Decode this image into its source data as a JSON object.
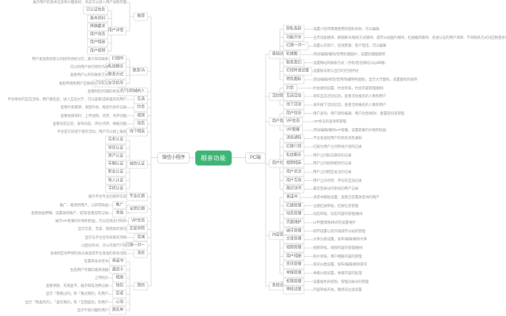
{
  "colors": {
    "accent_green": "#3eb575",
    "wire": "#dcdcdc",
    "topic_text": "#767676",
    "note_text": "#9c9c9c"
  },
  "center": {
    "label": "相亲功能"
  },
  "left": {
    "label": "微信小程序",
    "children": [
      {
        "label": "推荐",
        "desc": "展示用户的基本信息和兴趣爱好，点击可以进入用户详情页面",
        "children": [
          {
            "label": "用户详情",
            "children": [
              {
                "label": "已认证信息"
              },
              {
                "label": "基本资料"
              },
              {
                "label": "择偶要求"
              },
              {
                "label": "用户动态"
              },
              {
                "label": "用户相册"
              },
              {
                "label": "用户视频"
              }
            ]
          }
        ]
      },
      {
        "label": "联系TA",
        "children": [
          {
            "label": "打招呼",
            "desc": "用户发送系统默认的招呼语给对方，属于单向联系"
          },
          {
            "label": "私信聊天",
            "desc": "可以和用户进行即时沟通"
          },
          {
            "label": "联系方式",
            "desc": "查看用户公开的联系方式"
          },
          {
            "label": "互换微信/手机号",
            "desc": "发起申请和用户互换微信/手机号"
          }
        ]
      },
      {
        "label": "附近/同城的人",
        "desc": "查看附近/同城的单身用户"
      },
      {
        "label": "互选",
        "desc": "平台举办的互选活动，用户报名后，进入互选大厅，可以查看/选择喜欢的用户"
      },
      {
        "label": "约会",
        "desc": "查看约会邀请、发起约会、报名约会的记录"
      },
      {
        "label": "视频",
        "desc": "查看视频资料、上传视频、点赞、点评功能"
      },
      {
        "label": "动态",
        "desc": "查看动态信息、发布动态、评论/点赞、举报功能"
      },
      {
        "label": "线下相亲",
        "desc": "平台官方的线下相亲活动，用户可以线上报名"
      },
      {
        "label": "诚信认证",
        "children": [
          {
            "label": "实名认证"
          },
          {
            "label": "学历认证"
          },
          {
            "label": "房产认证"
          },
          {
            "label": "车辆认证"
          },
          {
            "label": "职业认证"
          },
          {
            "label": "收入认证"
          },
          {
            "label": "手机认证"
          }
        ]
      },
      {
        "label": "专业红娘",
        "desc": "展示平台专业红娘的信息"
      },
      {
        "label": "全民红娘",
        "children": [
          {
            "label": "推广",
            "desc": "推广、邀请新用户，以获得收益"
          },
          {
            "label": "收益",
            "desc": "查看收益明细、设置收款账户、提现/查看提现记录"
          }
        ]
      },
      {
        "label": "VIP会员",
        "desc": "展示VIP套餐的价格和权益，可以在线支付购买"
      },
      {
        "label": "恋爱学院",
        "desc": "显示交友、恋爱、情感类的资讯"
      },
      {
        "label": "商城",
        "desc": "显示与平台合作商家的项目"
      },
      {
        "label": "红娘一对一",
        "desc": "以图文形式，对公司进行介绍"
      },
      {
        "label": "消息",
        "desc": "会收到互动申请的会员发送或平台发送的系统消息"
      },
      {
        "label": "我的",
        "children": [
          {
            "label": "承诺书",
            "desc": "签署单身承诺书"
          },
          {
            "label": "邀请卡",
            "desc": "生成用户专属的邀请海报"
          },
          {
            "label": "相册",
            "desc": "上传照片"
          },
          {
            "label": "钱包",
            "desc": "查看余额、充值金币，展示每笔消费记录"
          },
          {
            "label": "足迹",
            "desc": "显示「我看过的」和「看过我的」的用户"
          },
          {
            "label": "心动",
            "desc": "显示「我喜欢的」、「喜欢我的」和「互相喜欢」的用户"
          },
          {
            "label": "黑名单",
            "desc": "显示不感兴趣的用户"
          }
        ]
      }
    ]
  },
  "right": {
    "label": "PC端",
    "children": [
      {
        "label": "基础设置",
        "children": [
          {
            "label": "隐私条款",
            "desc": "设置小程序需要使用的隐私条款，可以编辑"
          },
          {
            "label": "功能开关",
            "desc": "主页功能模块、解锁聊天/联系方式模块、城市分站图片模块、红娘推荐模块、各类认证的用户清单、不同联系方式对应数量条件的设置"
          },
          {
            "label": "红娘一对一",
            "desc": "设置公司简介、在线客服、客户电话，可以编辑"
          },
          {
            "label": "轮播图",
            "desc": "添加/编辑/删除/禁用轮播图片，设置轮播图跳转"
          },
          {
            "label": "联系我们",
            "desc": "设置网站的联系方式（手机/电话/微信/QQ/邮箱）"
          },
          {
            "label": "打招呼语设置",
            "desc": "设置账号默认显示的打招呼语"
          },
          {
            "label": "特色图标",
            "desc": "添加/编辑/修改/禁用/隐藏特色图标，显示大厅图标，设置图标的排序"
          }
        ]
      },
      {
        "label": "活动管理",
        "children": [
          {
            "label": "约会",
            "desc": "约会类别设置、约会审核，约会内容管理/删除"
          },
          {
            "label": "互选活动",
            "desc": "发布互选活动信息，查看活动报名的人数和用户"
          },
          {
            "label": "线下活动",
            "desc": "发布线下活动信息，查看活动报名的人数和用户"
          }
        ]
      },
      {
        "label": "用户管理",
        "children": [
          {
            "label": "用户信息",
            "desc": "用户查询、用户资料编辑、用户封禁/解封、重置密码等管理"
          },
          {
            "label": "VIP会员",
            "desc": "VIP会员的查询和管理"
          },
          {
            "label": "VIP套餐",
            "desc": "添加/编辑/删除VIP套餐，设置套餐的价格和权益"
          }
        ]
      },
      {
        "label": "用户社交",
        "children": [
          {
            "label": "消息通知",
            "desc": "平台发送给用户的系统消息通知"
          },
          {
            "label": "红娘介绍",
            "desc": "红娘为用户之间牵线介绍的记录"
          },
          {
            "label": "私信聊天",
            "desc": "用户之间私信聊天的记录"
          },
          {
            "label": "视频相亲",
            "desc": "用户之间视频相亲的记录"
          },
          {
            "label": "用户关注",
            "desc": "用户之间相互关注的记录"
          },
          {
            "label": "用户互动",
            "desc": "用户之间点赞、评论的互动记录"
          },
          {
            "label": "最近访问",
            "desc": "最近登录访问系统的用户记录"
          }
        ]
      },
      {
        "label": "内容管理",
        "children": [
          {
            "label": "承诺书",
            "desc": "承诺书模板设置，查看已签署承诺书的用户"
          },
          {
            "label": "红娘管理",
            "desc": "注册红娘审核，红娘信息管理"
          },
          {
            "label": "动态管理",
            "desc": "动态审核、动态内容的管理/删除"
          },
          {
            "label": "页面维护",
            "desc": "UI界面/模板样式的设置维护"
          },
          {
            "label": "城市管理",
            "desc": "城市设置以及开通城市分站的管理"
          },
          {
            "label": "文章管理",
            "desc": "文章分类设置，发布/编辑/删除文章"
          },
          {
            "label": "视频管理",
            "desc": "视频审核，视频内容的管理/删除"
          },
          {
            "label": "用户相册",
            "desc": "照片审核，用户相册内容的管理"
          },
          {
            "label": "资讯管理",
            "desc": "资讯分类设置，发布/编辑/删除资讯"
          },
          {
            "label": "举报管理",
            "desc": "举报分类设置，举报内容的处理"
          }
        ]
      },
      {
        "label": "系统设置",
        "children": [
          {
            "label": "权限管理",
            "desc": "设置角色的权限，管理员账号的管理"
          },
          {
            "label": "审核设置",
            "desc": "内容审核开关，敏感词过滤设置"
          }
        ]
      }
    ]
  }
}
